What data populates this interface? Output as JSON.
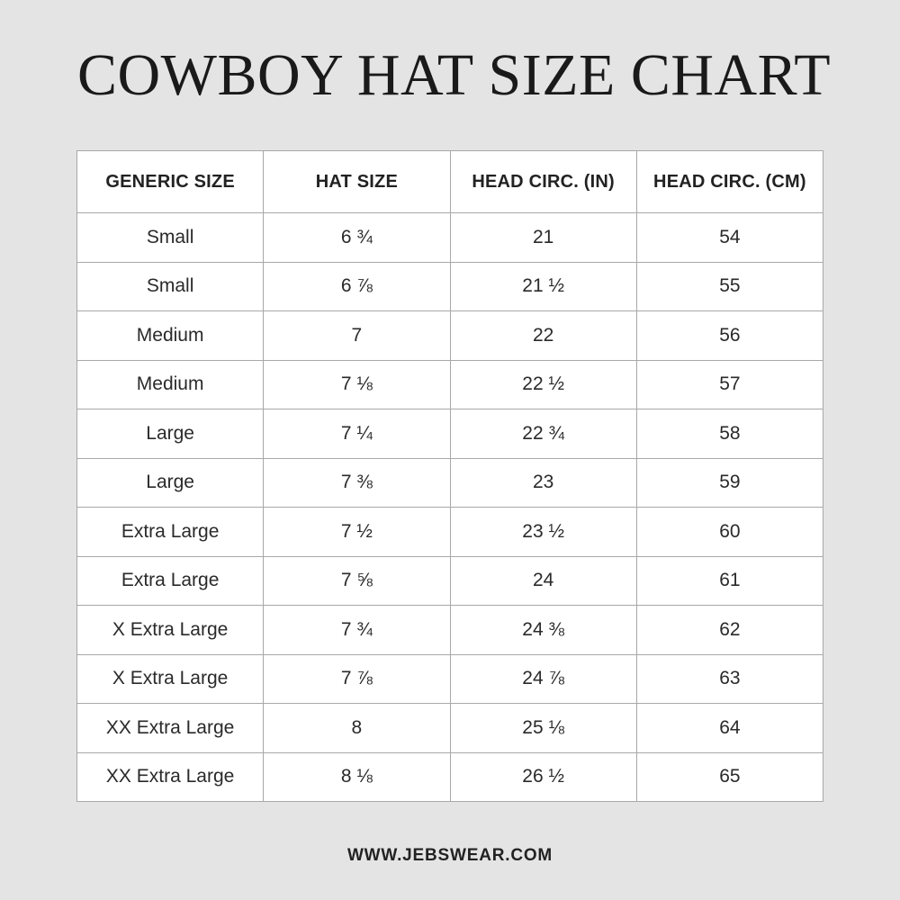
{
  "title": "COWBOY HAT SIZE CHART",
  "table": {
    "headers": [
      "GENERIC SIZE",
      "HAT SIZE",
      "HEAD CIRC. (IN)",
      "HEAD CIRC. (CM)"
    ],
    "rows": [
      [
        "Small",
        "6 ¾",
        "21",
        "54"
      ],
      [
        "Small",
        "6 ⅞",
        "21 ½",
        "55"
      ],
      [
        "Medium",
        "7",
        "22",
        "56"
      ],
      [
        "Medium",
        "7 ⅛",
        "22 ½",
        "57"
      ],
      [
        "Large",
        "7 ¼",
        "22 ¾",
        "58"
      ],
      [
        "Large",
        "7 ⅜",
        "23",
        "59"
      ],
      [
        "Extra Large",
        "7 ½",
        "23 ½",
        "60"
      ],
      [
        "Extra Large",
        "7 ⅝",
        "24",
        "61"
      ],
      [
        "X Extra Large",
        "7 ¾",
        "24 ⅜",
        "62"
      ],
      [
        "X Extra Large",
        "7 ⅞",
        "24 ⅞",
        "63"
      ],
      [
        "XX Extra Large",
        "8",
        "25 ⅛",
        "64"
      ],
      [
        "XX Extra Large",
        "8 ⅛",
        "26 ½",
        "65"
      ]
    ]
  },
  "footer": "WWW.JEBSWEAR.COM"
}
